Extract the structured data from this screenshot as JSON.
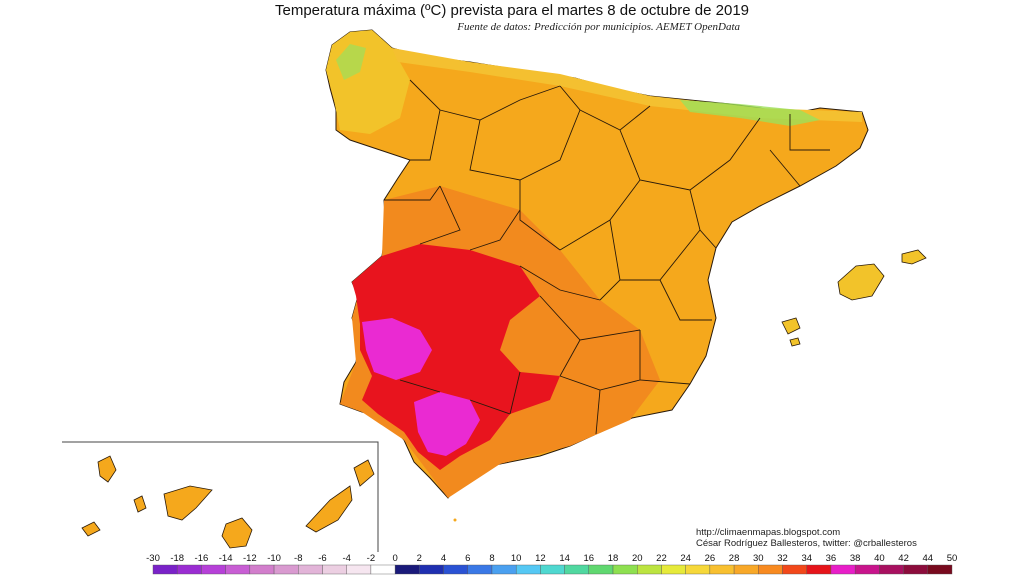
{
  "header": {
    "title": "Temperatura máxima (ºC) prevista para el martes 8 de octubre de 2019",
    "subtitle": "Fuente de datos: Predicción por municipios. AEMET OpenData"
  },
  "credits": {
    "line1": "http://climaenmapas.blogspot.com",
    "line2": "César Rodríguez Ballesteros, twitter: @crballesteros"
  },
  "legend": {
    "labels": [
      "-30",
      "-18",
      "-16",
      "-14",
      "-12",
      "-10",
      "-8",
      "-6",
      "-4",
      "-2",
      "0",
      "2",
      "4",
      "6",
      "8",
      "10",
      "12",
      "14",
      "16",
      "18",
      "20",
      "22",
      "24",
      "26",
      "28",
      "30",
      "32",
      "34",
      "36",
      "38",
      "40",
      "42",
      "44",
      "50"
    ],
    "colors": [
      "#7a22c8",
      "#9a2dd2",
      "#b640d8",
      "#c85ed4",
      "#d27ecc",
      "#d99ad0",
      "#e2b4d8",
      "#eccfe2",
      "#f6e6f0",
      "#ffffff",
      "#1a1a7a",
      "#1f2fb0",
      "#2a52d4",
      "#3a78e6",
      "#4aa0f0",
      "#55c8f4",
      "#4fd8d0",
      "#50d8a0",
      "#60d870",
      "#8ee050",
      "#bce440",
      "#e6ea3a",
      "#f6d83a",
      "#f8c030",
      "#f8a828",
      "#f88a20",
      "#f2481a",
      "#e6141a",
      "#e81ec8",
      "#c8148c",
      "#a81060",
      "#8c0c3c",
      "#780a1e"
    ]
  },
  "map": {
    "regions": "Península Ibérica, Islas Baleares, Islas Canarias",
    "colors": {
      "base": "#f5a81c",
      "warm": "#f28a1e",
      "hot": "#e8141e",
      "hottest": "#ea2ad2",
      "cool": "#f2c82a",
      "mild": "#9ee05a",
      "border": "#2a1a0a"
    }
  }
}
